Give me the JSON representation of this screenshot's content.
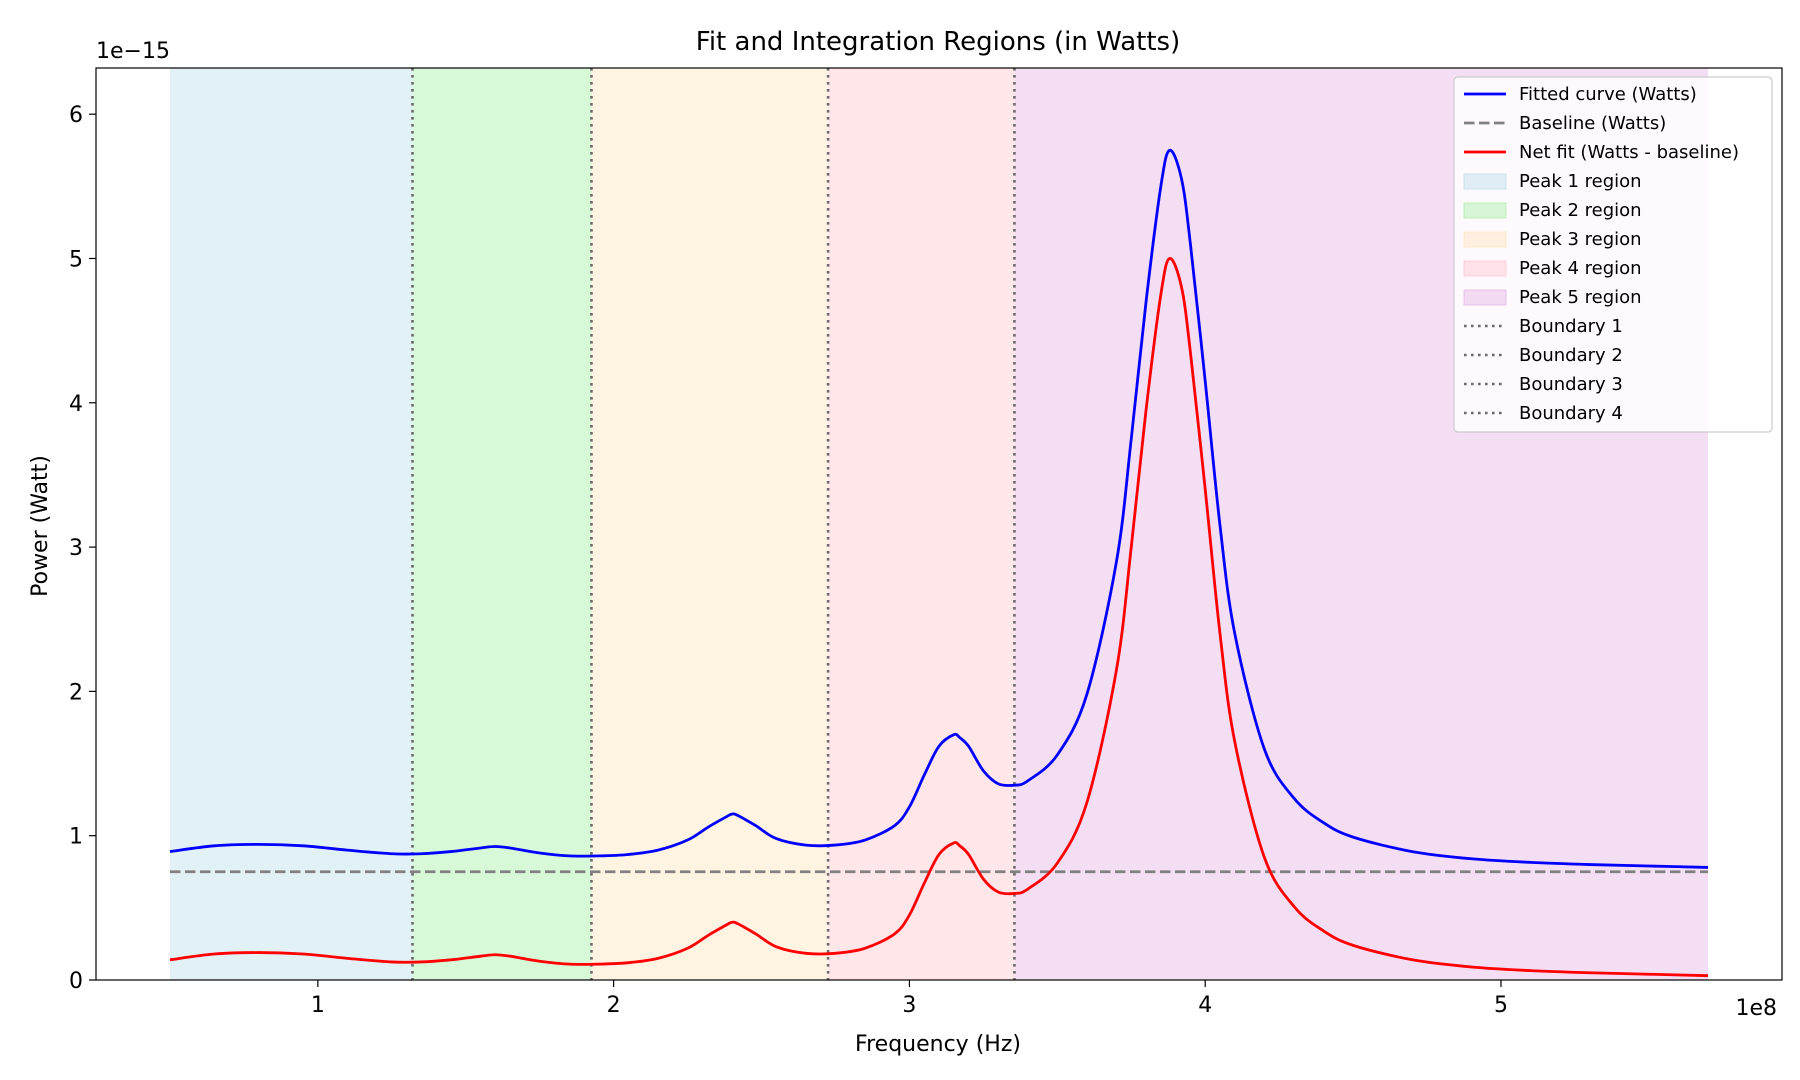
{
  "chart_data": {
    "type": "line",
    "title": "Fit and Integration Regions (in Watts)",
    "xlabel": "Frequency (Hz)",
    "ylabel": "Power (Watt)",
    "x_offset_text": "1e8",
    "y_offset_text": "1e−15",
    "xlim": [
      0.25,
      5.95
    ],
    "ylim": [
      0,
      6.32
    ],
    "x_ticks": [
      1,
      2,
      3,
      4,
      5
    ],
    "x_tick_labels": [
      "1",
      "2",
      "3",
      "4",
      "5"
    ],
    "y_ticks": [
      0,
      1,
      2,
      3,
      4,
      5,
      6
    ],
    "y_tick_labels": [
      "0",
      "1",
      "2",
      "3",
      "4",
      "5",
      "6"
    ],
    "grid": false,
    "legend_position": "top-right",
    "regions": [
      {
        "name": "Peak 1 region",
        "x": [
          0.5,
          1.32
        ],
        "color": "#add8e6"
      },
      {
        "name": "Peak 2 region",
        "x": [
          1.32,
          1.925
        ],
        "color": "#90ee90"
      },
      {
        "name": "Peak 3 region",
        "x": [
          1.925,
          2.725
        ],
        "color": "#ffdead"
      },
      {
        "name": "Peak 4 region",
        "x": [
          2.725,
          3.355
        ],
        "color": "#ffb6c1"
      },
      {
        "name": "Peak 5 region",
        "x": [
          3.355,
          5.7
        ],
        "color": "#dda0dd"
      }
    ],
    "boundaries": [
      {
        "name": "Boundary 1",
        "x": 1.32
      },
      {
        "name": "Boundary 2",
        "x": 1.925
      },
      {
        "name": "Boundary 3",
        "x": 2.725
      },
      {
        "name": "Boundary 4",
        "x": 3.355
      }
    ],
    "series": [
      {
        "name": "Fitted curve (Watts)",
        "color": "#0000ff",
        "x": [
          0.5,
          0.65,
          0.8,
          0.95,
          1.1,
          1.25,
          1.35,
          1.45,
          1.55,
          1.6,
          1.65,
          1.75,
          1.85,
          1.95,
          2.05,
          2.15,
          2.25,
          2.32,
          2.38,
          2.4,
          2.42,
          2.48,
          2.55,
          2.65,
          2.75,
          2.85,
          2.95,
          3.0,
          3.05,
          3.1,
          3.15,
          3.17,
          3.2,
          3.25,
          3.3,
          3.355,
          3.4,
          3.5,
          3.6,
          3.7,
          3.75,
          3.8,
          3.85,
          3.88,
          3.92,
          3.95,
          4.0,
          4.05,
          4.1,
          4.2,
          4.3,
          4.4,
          4.5,
          4.7,
          4.9,
          5.1,
          5.3,
          5.5,
          5.7
        ],
        "values": [
          0.89,
          0.93,
          0.94,
          0.93,
          0.9,
          0.875,
          0.875,
          0.89,
          0.915,
          0.925,
          0.915,
          0.88,
          0.86,
          0.86,
          0.87,
          0.9,
          0.97,
          1.06,
          1.13,
          1.15,
          1.14,
          1.07,
          0.98,
          0.935,
          0.935,
          0.97,
          1.07,
          1.2,
          1.42,
          1.62,
          1.7,
          1.68,
          1.62,
          1.45,
          1.36,
          1.35,
          1.38,
          1.56,
          1.98,
          2.9,
          3.75,
          4.7,
          5.5,
          5.75,
          5.55,
          5.1,
          4.15,
          3.15,
          2.4,
          1.6,
          1.26,
          1.09,
          0.99,
          0.89,
          0.84,
          0.815,
          0.8,
          0.79,
          0.78
        ]
      },
      {
        "name": "Baseline (Watts)",
        "color": "#808080",
        "dashed": true,
        "x": [
          0.5,
          5.7
        ],
        "values": [
          0.75,
          0.75
        ]
      },
      {
        "name": "Net fit (Watts - baseline)",
        "color": "#ff0000",
        "x": [
          0.5,
          0.65,
          0.8,
          0.95,
          1.1,
          1.25,
          1.35,
          1.45,
          1.55,
          1.6,
          1.65,
          1.75,
          1.85,
          1.95,
          2.05,
          2.15,
          2.25,
          2.32,
          2.38,
          2.4,
          2.42,
          2.48,
          2.55,
          2.65,
          2.75,
          2.85,
          2.95,
          3.0,
          3.05,
          3.1,
          3.15,
          3.17,
          3.2,
          3.25,
          3.3,
          3.355,
          3.4,
          3.5,
          3.6,
          3.7,
          3.75,
          3.8,
          3.85,
          3.88,
          3.92,
          3.95,
          4.0,
          4.05,
          4.1,
          4.2,
          4.3,
          4.4,
          4.5,
          4.7,
          4.9,
          5.1,
          5.3,
          5.5,
          5.7
        ],
        "values": [
          0.14,
          0.18,
          0.19,
          0.18,
          0.15,
          0.125,
          0.125,
          0.14,
          0.165,
          0.175,
          0.165,
          0.13,
          0.11,
          0.11,
          0.12,
          0.15,
          0.22,
          0.31,
          0.38,
          0.4,
          0.39,
          0.32,
          0.23,
          0.185,
          0.185,
          0.22,
          0.32,
          0.45,
          0.67,
          0.87,
          0.95,
          0.93,
          0.87,
          0.7,
          0.61,
          0.6,
          0.63,
          0.81,
          1.23,
          2.15,
          3.0,
          3.95,
          4.75,
          5.0,
          4.8,
          4.35,
          3.4,
          2.4,
          1.65,
          0.85,
          0.51,
          0.34,
          0.24,
          0.14,
          0.09,
          0.065,
          0.05,
          0.04,
          0.03
        ]
      }
    ]
  }
}
